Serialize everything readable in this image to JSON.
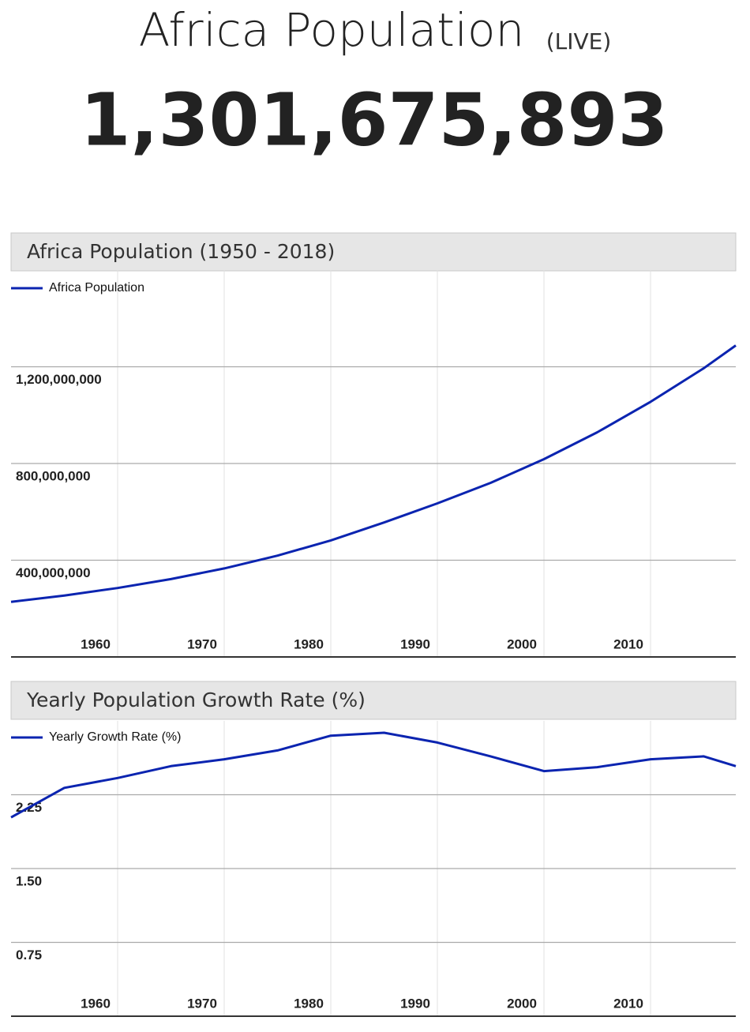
{
  "header": {
    "title": "Africa Population",
    "badge": "(LIVE)",
    "counter": "1,301,675,893"
  },
  "chart_data": [
    {
      "type": "line",
      "title": "Africa Population (1950 - 2018)",
      "x": [
        1950,
        1955,
        1960,
        1965,
        1970,
        1975,
        1980,
        1985,
        1990,
        1995,
        2000,
        2005,
        2010,
        2015,
        2018
      ],
      "series": [
        {
          "name": "Africa Population",
          "color": "#0b24b0",
          "values": [
            228000000,
            254000000,
            285000000,
            322000000,
            366000000,
            419000000,
            482000000,
            556000000,
            635000000,
            720000000,
            818000000,
            929000000,
            1055000000,
            1194000000,
            1288000000
          ]
        }
      ],
      "xlim": [
        1950,
        2018
      ],
      "xticks": [
        1960,
        1970,
        1980,
        1990,
        2000,
        2010
      ],
      "ylim": [
        0,
        1600000000
      ],
      "yticks": [
        {
          "value": 400000000,
          "label": "400,000,000"
        },
        {
          "value": 800000000,
          "label": "800,000,000"
        },
        {
          "value": 1200000000,
          "label": "1,200,000,000"
        }
      ],
      "grid": true,
      "legend": "top-left"
    },
    {
      "type": "line",
      "title": "Yearly Population Growth Rate (%)",
      "x": [
        1950,
        1955,
        1960,
        1965,
        1970,
        1975,
        1980,
        1985,
        1990,
        1995,
        2000,
        2005,
        2010,
        2015,
        2018
      ],
      "series": [
        {
          "name": "Yearly Growth Rate (%)",
          "color": "#0b24b0",
          "values": [
            2.02,
            2.32,
            2.42,
            2.54,
            2.61,
            2.7,
            2.85,
            2.88,
            2.78,
            2.64,
            2.49,
            2.53,
            2.61,
            2.64,
            2.54
          ]
        }
      ],
      "xlim": [
        1950,
        2018
      ],
      "xticks": [
        1960,
        1970,
        1980,
        1990,
        2000,
        2010
      ],
      "ylim": [
        0,
        3
      ],
      "yticks": [
        {
          "value": 0.75,
          "label": "0.75"
        },
        {
          "value": 1.5,
          "label": "1.50"
        },
        {
          "value": 2.25,
          "label": "2.25"
        }
      ],
      "grid": true,
      "legend": "top-left"
    }
  ]
}
